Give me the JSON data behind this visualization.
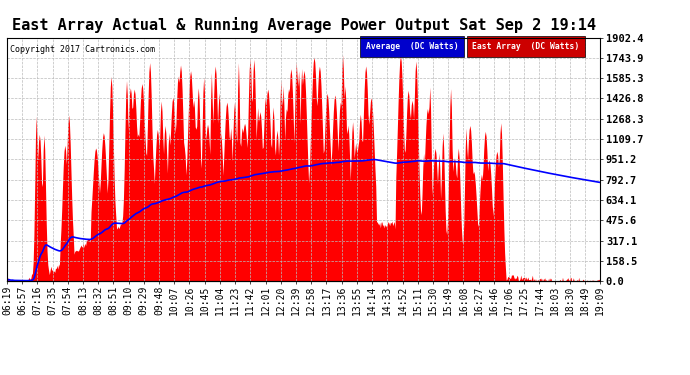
{
  "title": "East Array Actual & Running Average Power Output Sat Sep 2 19:14",
  "copyright": "Copyright 2017 Cartronics.com",
  "ylabel_right_ticks": [
    0.0,
    158.5,
    317.1,
    475.6,
    634.1,
    792.7,
    951.2,
    1109.7,
    1268.3,
    1426.8,
    1585.3,
    1743.9,
    1902.4
  ],
  "ylim": [
    0,
    1902.4
  ],
  "x_tick_labels": [
    "06:19",
    "06:57",
    "07:16",
    "07:35",
    "07:54",
    "08:13",
    "08:32",
    "08:51",
    "09:10",
    "09:29",
    "09:48",
    "10:07",
    "10:26",
    "10:45",
    "11:04",
    "11:23",
    "11:42",
    "12:01",
    "12:20",
    "12:39",
    "12:58",
    "13:17",
    "13:36",
    "13:55",
    "14:14",
    "14:33",
    "14:52",
    "15:11",
    "15:30",
    "15:49",
    "16:08",
    "16:27",
    "16:46",
    "17:06",
    "17:25",
    "17:44",
    "18:03",
    "18:30",
    "18:49",
    "19:09"
  ],
  "background_color": "#ffffff",
  "grid_color": "#bbbbbb",
  "fill_color": "#ff0000",
  "avg_line_color": "#0000ff",
  "legend_avg_bg": "#0000cc",
  "legend_east_bg": "#cc0000",
  "title_fontsize": 11,
  "tick_fontsize": 7,
  "n_points": 770
}
